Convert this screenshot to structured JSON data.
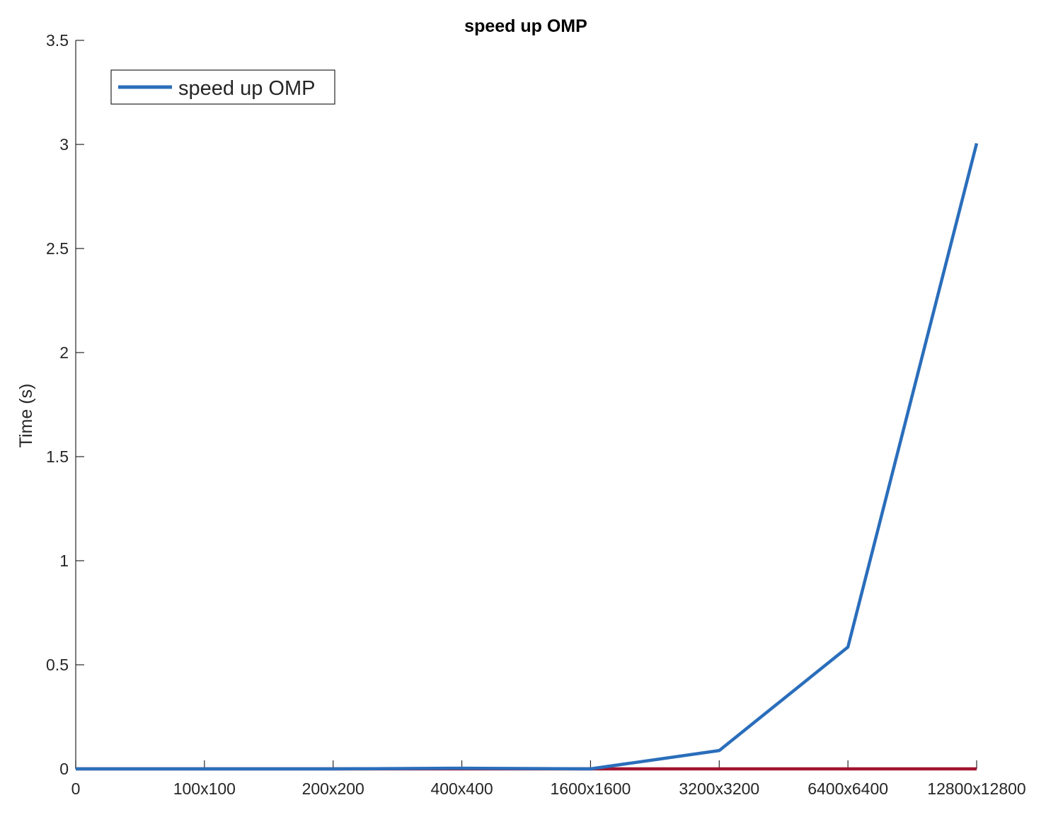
{
  "chart_data": {
    "type": "line",
    "title": "speed up OMP",
    "xlabel": "",
    "ylabel": "Time (s)",
    "x_tick_labels": [
      "0",
      "100x100",
      "200x200",
      "400x400",
      "1600x1600",
      "3200x3200",
      "6400x6400",
      "12800x12800"
    ],
    "y_ticks": [
      0,
      0.5,
      1,
      1.5,
      2,
      2.5,
      3,
      3.5
    ],
    "y_tick_labels": [
      "0",
      "0.5",
      "1",
      "1.5",
      "2",
      "2.5",
      "3",
      "3.5"
    ],
    "xlim": [
      0,
      7
    ],
    "ylim": [
      0,
      3.5
    ],
    "grid": false,
    "legend_position": "top-left",
    "series": [
      {
        "name": "speed up OMP",
        "color": "#2a6ebb",
        "x": [
          0,
          1,
          2,
          3,
          4,
          5,
          6,
          7
        ],
        "values": [
          0,
          0,
          0,
          0.003,
          0,
          0.088,
          0.585,
          3.005
        ]
      },
      {
        "color": "#a2142f",
        "x": [
          0,
          1,
          2,
          3,
          4,
          5,
          6,
          7
        ],
        "values": [
          0,
          0,
          0,
          0,
          0,
          0,
          0,
          0
        ]
      }
    ]
  }
}
